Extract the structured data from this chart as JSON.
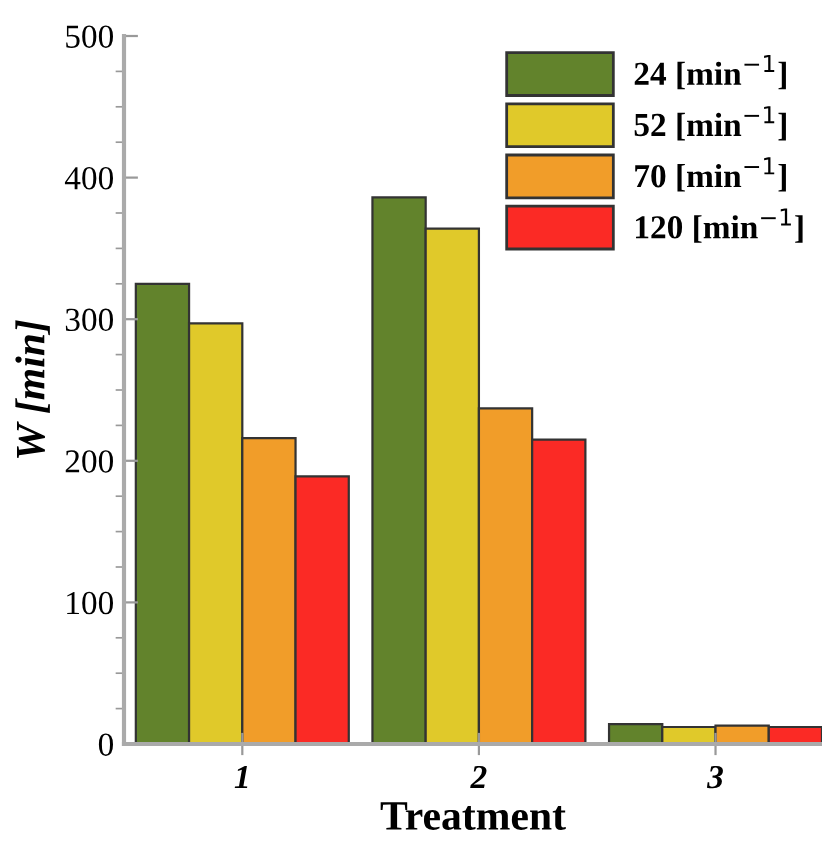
{
  "chart_data": {
    "type": "bar",
    "xlabel": "Treatment",
    "ylabel": "W [min]",
    "categories": [
      "1",
      "2",
      "3"
    ],
    "series": [
      {
        "name": "24 [min$^{−1}$]",
        "color": "#62832c",
        "values": [
          325,
          386,
          14
        ]
      },
      {
        "name": "52 [min$^{−1}$]",
        "color": "#e0c92a",
        "values": [
          297,
          364,
          12
        ]
      },
      {
        "name": "70 [min$^{−1}$]",
        "color": "#f19d29",
        "values": [
          216,
          237,
          13
        ]
      },
      {
        "name": "120 [min$^{−1}$]",
        "color": "#fb2a25",
        "values": [
          189,
          215,
          12
        ]
      }
    ],
    "ylim": [
      0,
      500
    ],
    "yticks": [
      0,
      100,
      200,
      300,
      400,
      500
    ],
    "grid": false,
    "legend": "top right"
  }
}
